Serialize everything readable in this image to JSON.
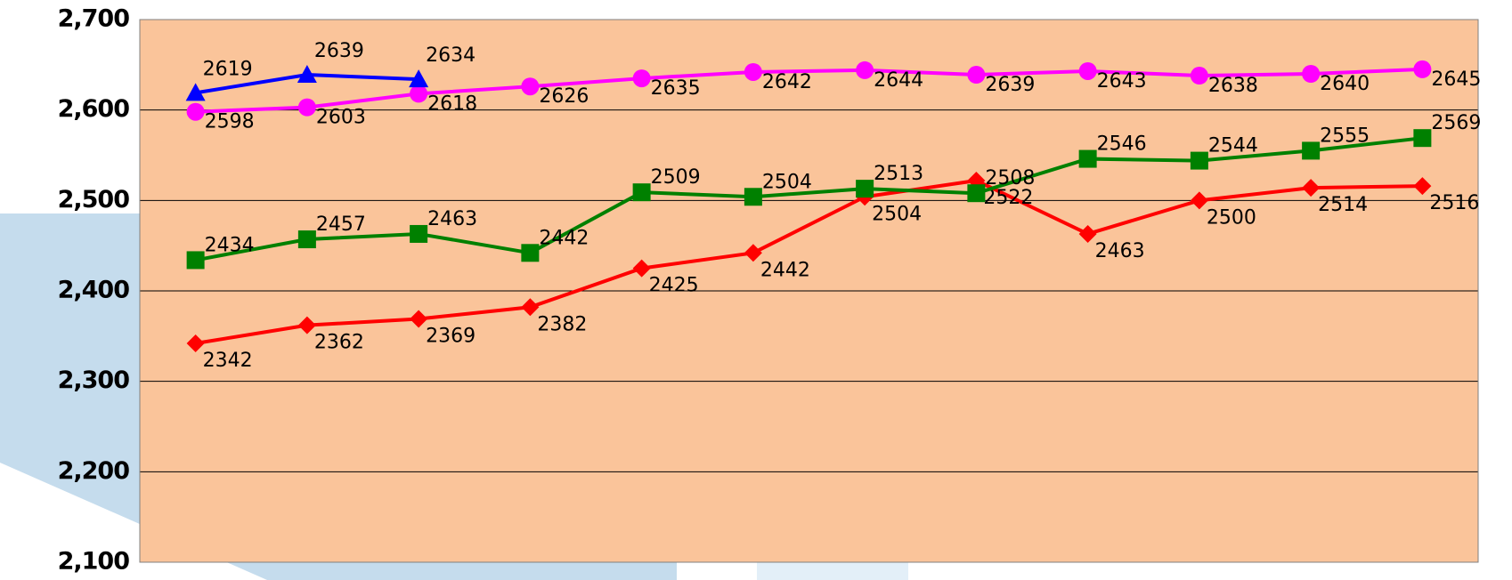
{
  "chart_data": {
    "type": "line",
    "categories": [
      null,
      null,
      null,
      null,
      null,
      null,
      null,
      null,
      null,
      null,
      null,
      null
    ],
    "series": [
      {
        "color": "#ff0000",
        "marker": "diamond",
        "values": [
          2342,
          2362,
          2369,
          2382,
          2425,
          2442,
          2504,
          2522,
          2463,
          2500,
          2514,
          2516
        ]
      },
      {
        "color": "#008000",
        "marker": "square",
        "values": [
          2434,
          2457,
          2463,
          2442,
          2509,
          2504,
          2513,
          2508,
          2546,
          2544,
          2555,
          2569
        ]
      },
      {
        "color": "#ff00ff",
        "marker": "circle",
        "values": [
          2598,
          2603,
          2618,
          2626,
          2635,
          2642,
          2644,
          2639,
          2643,
          2638,
          2640,
          2645
        ]
      },
      {
        "color": "#0000ff",
        "marker": "triangle",
        "values": [
          2619,
          2639,
          2634,
          null,
          null,
          null,
          null,
          null,
          null,
          null,
          null,
          null
        ]
      }
    ],
    "ylim": [
      2100,
      2700
    ],
    "yticks": [
      {
        "value": 2100,
        "label": "2,100"
      },
      {
        "value": 2200,
        "label": "2,200"
      },
      {
        "value": 2300,
        "label": "2,300"
      },
      {
        "value": 2400,
        "label": "2,400"
      },
      {
        "value": 2500,
        "label": "2,500"
      },
      {
        "value": 2600,
        "label": "2,600"
      },
      {
        "value": 2700,
        "label": "2,700"
      }
    ],
    "grid": true,
    "background": "#fac49a"
  }
}
